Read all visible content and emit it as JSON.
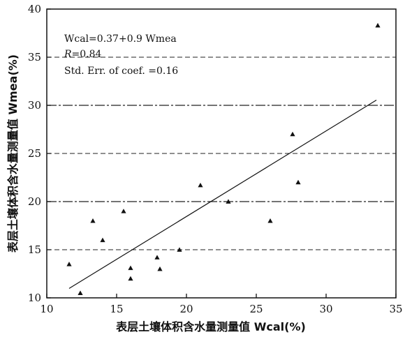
{
  "chart_data": {
    "type": "scatter",
    "xlabel": "表层土壤体积含水量测量值 Wcal(%)",
    "ylabel": "表层土壤体积含水量测量值 Wmea(%)",
    "xlim": [
      10,
      35
    ],
    "ylim": [
      10,
      40
    ],
    "xticks": [
      "10",
      "15",
      "20",
      "25",
      "30",
      "35"
    ],
    "yticks": [
      "10",
      "15",
      "20",
      "25",
      "30",
      "35",
      "40"
    ],
    "grid": "horizontal dash-dot lines",
    "points": [
      {
        "x": 11.6,
        "y": 13.5
      },
      {
        "x": 12.4,
        "y": 10.5
      },
      {
        "x": 13.3,
        "y": 18.0
      },
      {
        "x": 14.0,
        "y": 16.0
      },
      {
        "x": 15.5,
        "y": 19.0
      },
      {
        "x": 16.0,
        "y": 13.1
      },
      {
        "x": 16.0,
        "y": 12.0
      },
      {
        "x": 17.9,
        "y": 14.2
      },
      {
        "x": 18.1,
        "y": 13.0
      },
      {
        "x": 19.5,
        "y": 15.0
      },
      {
        "x": 21.0,
        "y": 21.7
      },
      {
        "x": 23.0,
        "y": 20.0
      },
      {
        "x": 26.0,
        "y": 18.0
      },
      {
        "x": 27.6,
        "y": 27.0
      },
      {
        "x": 28.0,
        "y": 22.0
      },
      {
        "x": 33.7,
        "y": 38.3
      }
    ],
    "fit_line": {
      "x1": 11.6,
      "y1": 10.98,
      "x2": 33.6,
      "y2": 30.54
    },
    "annotations": {
      "equation": "Wcal=0.37+0.9 Wmea",
      "r_prefix": "R",
      "r_value": "=0.84",
      "stderr": "Std. Err. of coef. =0.16"
    }
  }
}
